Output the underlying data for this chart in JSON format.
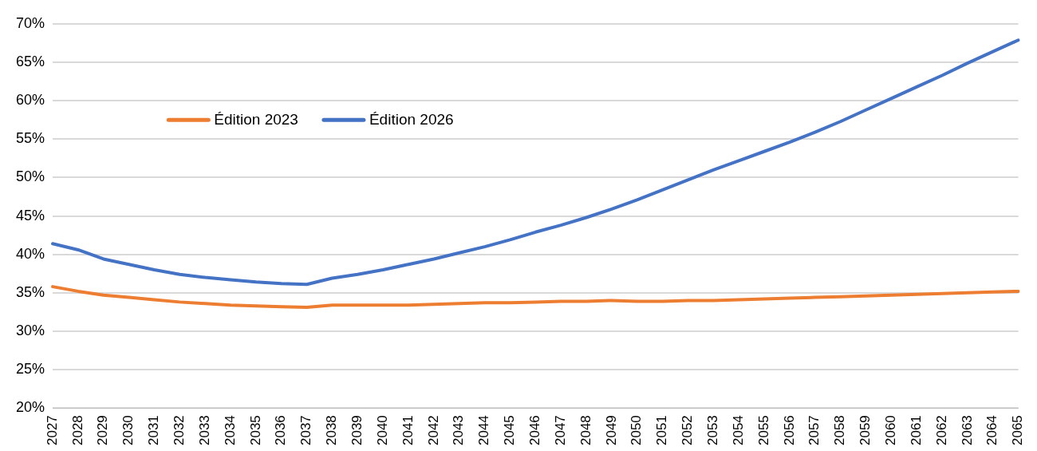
{
  "chart_data": {
    "type": "line",
    "categories": [
      "2027",
      "2028",
      "2029",
      "2030",
      "2031",
      "2032",
      "2033",
      "2034",
      "2035",
      "2036",
      "2037",
      "2038",
      "2039",
      "2040",
      "2041",
      "2042",
      "2043",
      "2044",
      "2045",
      "2046",
      "2047",
      "2048",
      "2049",
      "2050",
      "2051",
      "2052",
      "2053",
      "2054",
      "2055",
      "2056",
      "2057",
      "2058",
      "2059",
      "2060",
      "2061",
      "2062",
      "2063",
      "2064",
      "2065"
    ],
    "series": [
      {
        "name": "Édition 2023",
        "color": "#ed7d31",
        "values": [
          35.8,
          35.2,
          34.7,
          34.4,
          34.1,
          33.8,
          33.6,
          33.4,
          33.3,
          33.2,
          33.1,
          33.4,
          33.4,
          33.4,
          33.4,
          33.5,
          33.6,
          33.7,
          33.7,
          33.8,
          33.9,
          33.9,
          34.0,
          33.9,
          33.9,
          34.0,
          34.0,
          34.1,
          34.2,
          34.3,
          34.4,
          34.5,
          34.6,
          34.7,
          34.8,
          34.9,
          35.0,
          35.1,
          35.2
        ]
      },
      {
        "name": "Édition 2026",
        "color": "#4472c4",
        "values": [
          41.4,
          40.6,
          39.4,
          38.7,
          38.0,
          37.4,
          37.0,
          36.7,
          36.4,
          36.2,
          36.1,
          36.9,
          37.4,
          38.0,
          38.7,
          39.4,
          40.2,
          41.0,
          41.9,
          42.9,
          43.8,
          44.8,
          45.9,
          47.1,
          48.4,
          49.7,
          51.0,
          52.2,
          53.4,
          54.6,
          55.9,
          57.3,
          58.8,
          60.3,
          61.8,
          63.3,
          64.9,
          66.4,
          67.9
        ]
      }
    ],
    "ylim": [
      20,
      70
    ],
    "yticks": [
      {
        "value": 20,
        "label": "20%"
      },
      {
        "value": 25,
        "label": "25%"
      },
      {
        "value": 30,
        "label": "30%"
      },
      {
        "value": 35,
        "label": "35%"
      },
      {
        "value": 40,
        "label": "40%"
      },
      {
        "value": 45,
        "label": "45%"
      },
      {
        "value": 50,
        "label": "50%"
      },
      {
        "value": 55,
        "label": "55%"
      },
      {
        "value": 60,
        "label": "60%"
      },
      {
        "value": 65,
        "label": "65%"
      },
      {
        "value": 70,
        "label": "70%"
      }
    ],
    "grid": "y",
    "legend": "top left",
    "marker": "none",
    "line_style": "solid"
  }
}
